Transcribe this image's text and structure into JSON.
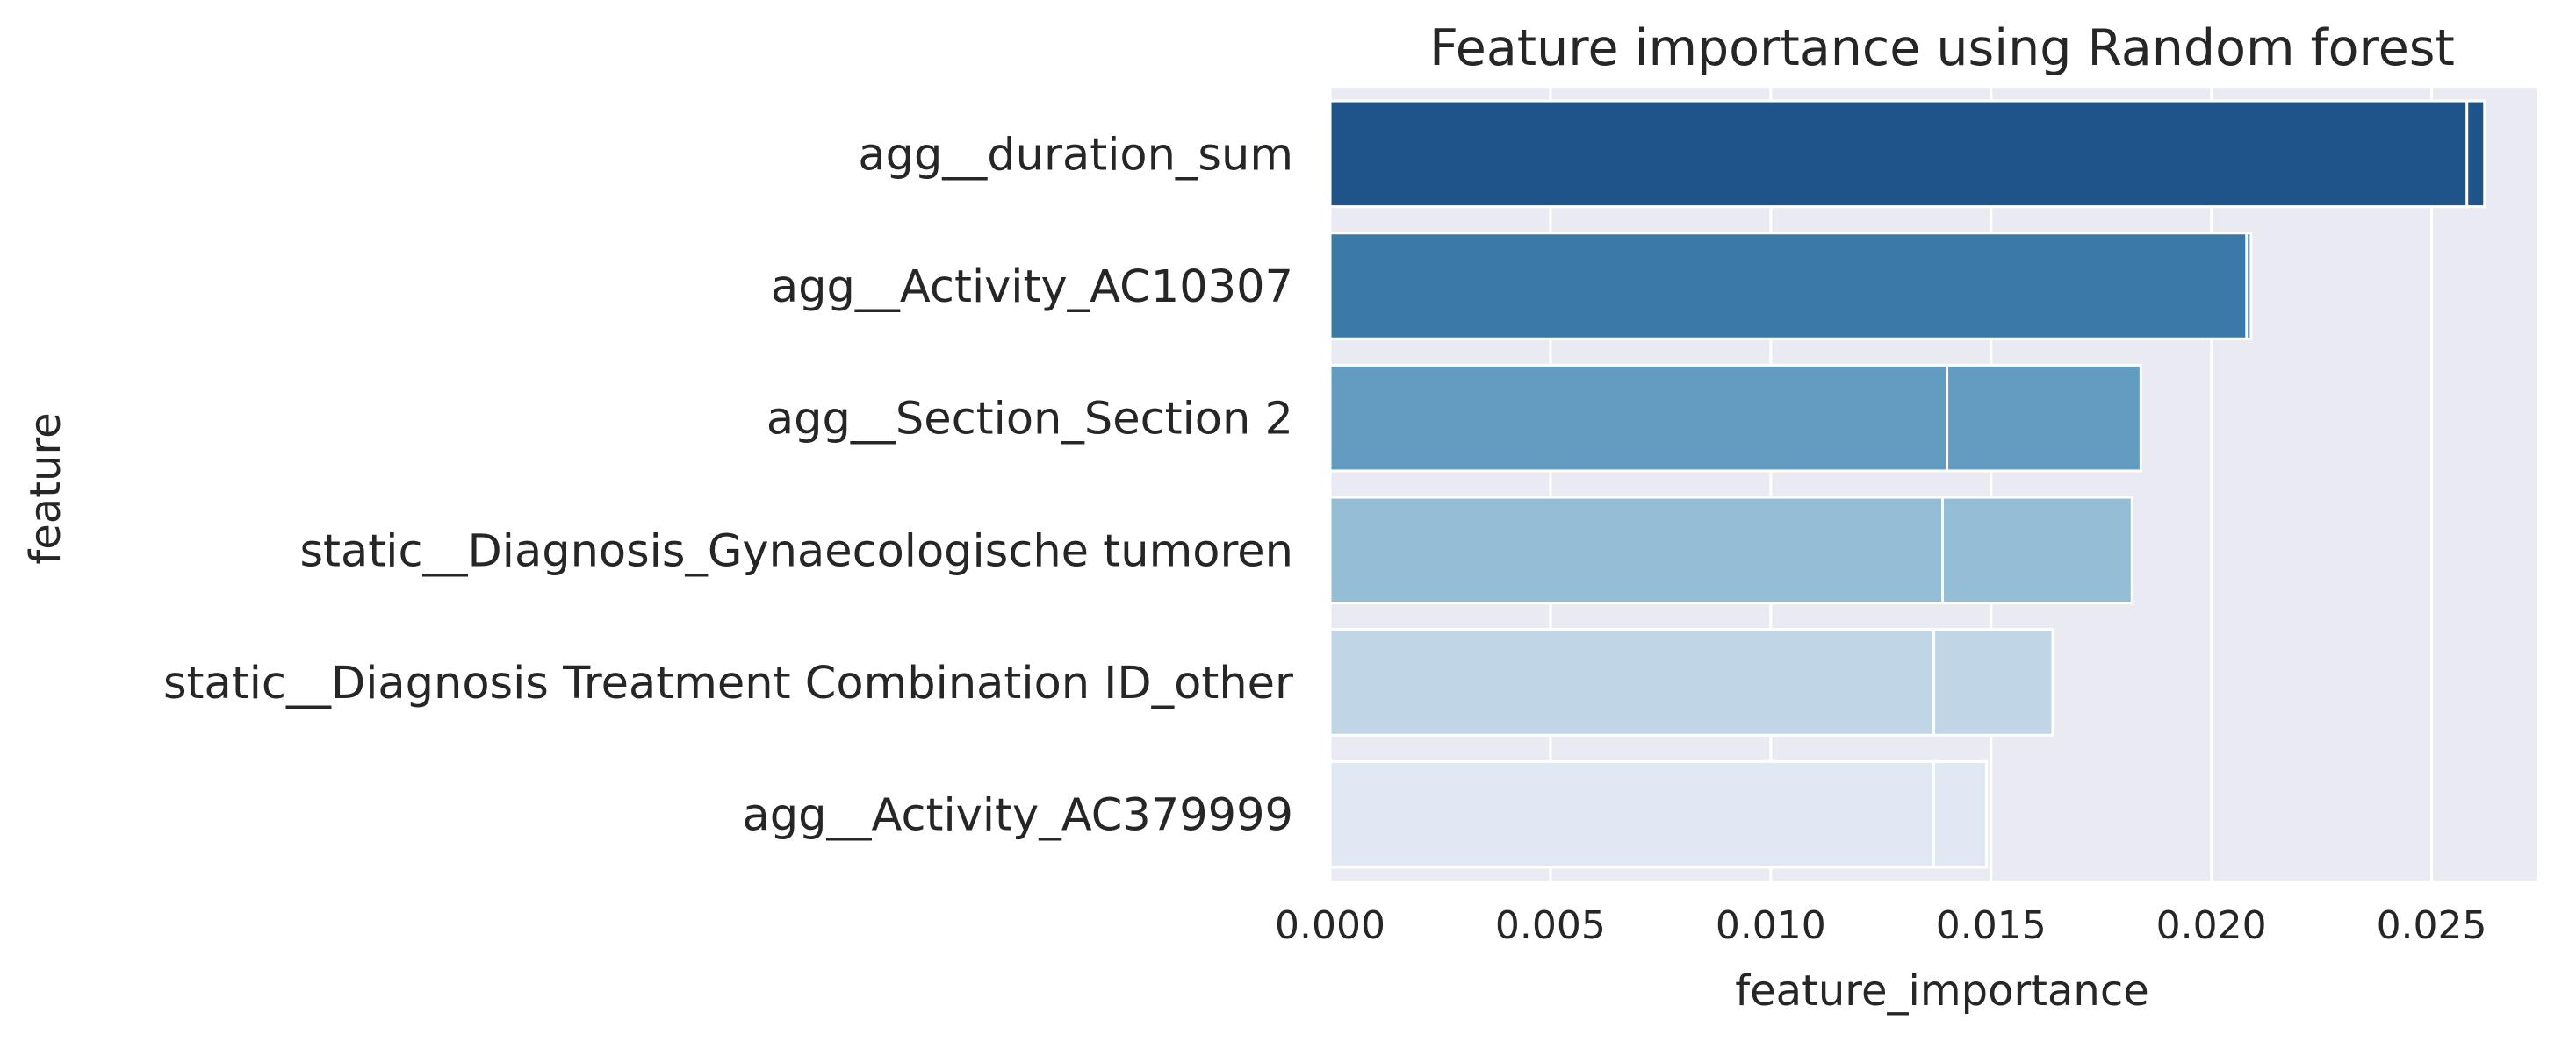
{
  "chart_data": {
    "type": "bar",
    "orientation": "horizontal",
    "title": "Feature importance using Random forest",
    "xlabel": "feature_importance",
    "ylabel": "feature",
    "xlim": [
      0.0,
      0.0274
    ],
    "xticks": [
      "0.000",
      "0.005",
      "0.010",
      "0.015",
      "0.020",
      "0.025"
    ],
    "xtick_values": [
      0.0,
      0.005,
      0.01,
      0.015,
      0.02,
      0.025
    ],
    "grid": true,
    "categories": [
      "agg__duration_sum",
      "agg__Activity_AC10307",
      "agg__Section_Section 2",
      "static__Diagnosis_Gynaecologische tumoren",
      "static__Diagnosis Treatment Combination ID_other",
      "agg__Activity_AC379999"
    ],
    "series": [
      {
        "values": [
          0.0258,
          0.0208,
          0.014,
          0.0139,
          0.0137,
          0.0137
        ]
      },
      {
        "values": [
          0.0262,
          0.0209,
          0.0184,
          0.0182,
          0.0164,
          0.0149
        ]
      }
    ],
    "colors": [
      "#1f548b",
      "#3b79a9",
      "#639cc1",
      "#94bdd6",
      "#c0d6e7",
      "#dfe8f3"
    ],
    "background_color": "#eaeaf2",
    "grid_color": "#ffffff",
    "text_color": "#262626"
  }
}
